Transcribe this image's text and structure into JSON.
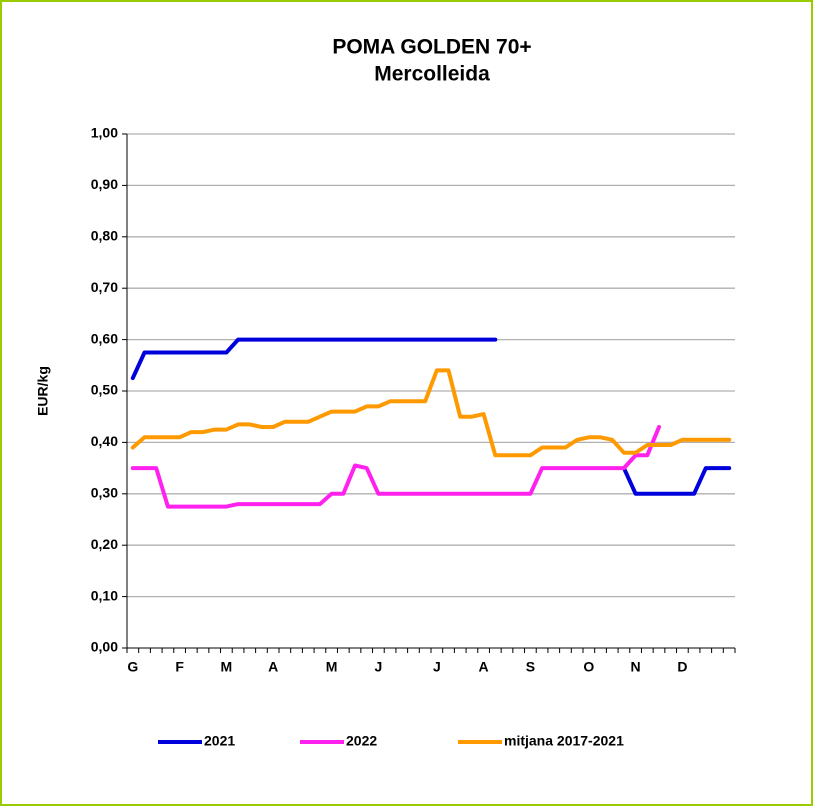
{
  "chart_data": {
    "type": "line",
    "title": "POMA GOLDEN 70+",
    "subtitle": "Mercolleida",
    "y_label": "EUR/kg",
    "categories": [
      "G",
      null,
      null,
      null,
      "F",
      null,
      null,
      null,
      "M",
      null,
      null,
      null,
      "A",
      null,
      null,
      null,
      null,
      "M",
      null,
      null,
      null,
      "J",
      null,
      null,
      null,
      null,
      "J",
      null,
      null,
      null,
      "A",
      null,
      null,
      null,
      "S",
      null,
      null,
      null,
      null,
      "O",
      null,
      null,
      null,
      "N",
      null,
      null,
      null,
      "D",
      null,
      null,
      null,
      null
    ],
    "series": [
      {
        "name": "2021",
        "color": "#0000dd",
        "values": [
          0.525,
          0.575,
          0.575,
          0.575,
          0.575,
          0.575,
          0.575,
          0.575,
          0.575,
          0.6,
          0.6,
          0.6,
          0.6,
          0.6,
          0.6,
          0.6,
          0.6,
          0.6,
          0.6,
          0.6,
          0.6,
          0.6,
          0.6,
          0.6,
          0.6,
          0.6,
          0.6,
          0.6,
          0.6,
          0.6,
          0.6,
          0.6,
          null,
          null,
          null,
          null,
          null,
          null,
          null,
          null,
          null,
          null,
          0.35,
          0.3,
          0.3,
          0.3,
          0.3,
          0.3,
          0.3,
          0.35,
          0.35,
          0.35
        ]
      },
      {
        "name": "2022",
        "color": "#ff22ee",
        "values": [
          0.35,
          0.35,
          0.35,
          0.275,
          0.275,
          0.275,
          0.275,
          0.275,
          0.275,
          0.28,
          0.28,
          0.28,
          0.28,
          0.28,
          0.28,
          0.28,
          0.28,
          0.3,
          0.3,
          0.355,
          0.35,
          0.3,
          0.3,
          0.3,
          0.3,
          0.3,
          0.3,
          0.3,
          0.3,
          0.3,
          0.3,
          0.3,
          0.3,
          0.3,
          0.3,
          0.35,
          0.35,
          0.35,
          0.35,
          0.35,
          0.35,
          0.35,
          0.35,
          0.375,
          0.375,
          0.43,
          null,
          null,
          null,
          null,
          null,
          null
        ]
      },
      {
        "name": "mitjana 2017-2021",
        "color": "#ff9900",
        "values": [
          0.39,
          0.41,
          0.41,
          0.41,
          0.41,
          0.42,
          0.42,
          0.425,
          0.425,
          0.435,
          0.435,
          0.43,
          0.43,
          0.44,
          0.44,
          0.44,
          0.45,
          0.46,
          0.46,
          0.46,
          0.47,
          0.47,
          0.48,
          0.48,
          0.48,
          0.48,
          0.54,
          0.54,
          0.45,
          0.45,
          0.455,
          0.375,
          0.375,
          0.375,
          0.375,
          0.39,
          0.39,
          0.39,
          0.405,
          0.41,
          0.41,
          0.405,
          0.38,
          0.38,
          0.395,
          0.395,
          0.395,
          0.405,
          0.405,
          0.405,
          0.405,
          0.405
        ]
      }
    ],
    "ylim": [
      0,
      1
    ],
    "yticks": [
      {
        "value": 0,
        "label": "0,00"
      },
      {
        "value": 0.1,
        "label": "0,10"
      },
      {
        "value": 0.2,
        "label": "0,20"
      },
      {
        "value": 0.3,
        "label": "0,30"
      },
      {
        "value": 0.4,
        "label": "0,40"
      },
      {
        "value": 0.5,
        "label": "0,50"
      },
      {
        "value": 0.6,
        "label": "0,60"
      },
      {
        "value": 0.7,
        "label": "0,70"
      },
      {
        "value": 0.8,
        "label": "0,80"
      },
      {
        "value": 0.9,
        "label": "0,90"
      },
      {
        "value": 1,
        "label": "1,00"
      }
    ],
    "grid": true,
    "legend": "bottom"
  }
}
